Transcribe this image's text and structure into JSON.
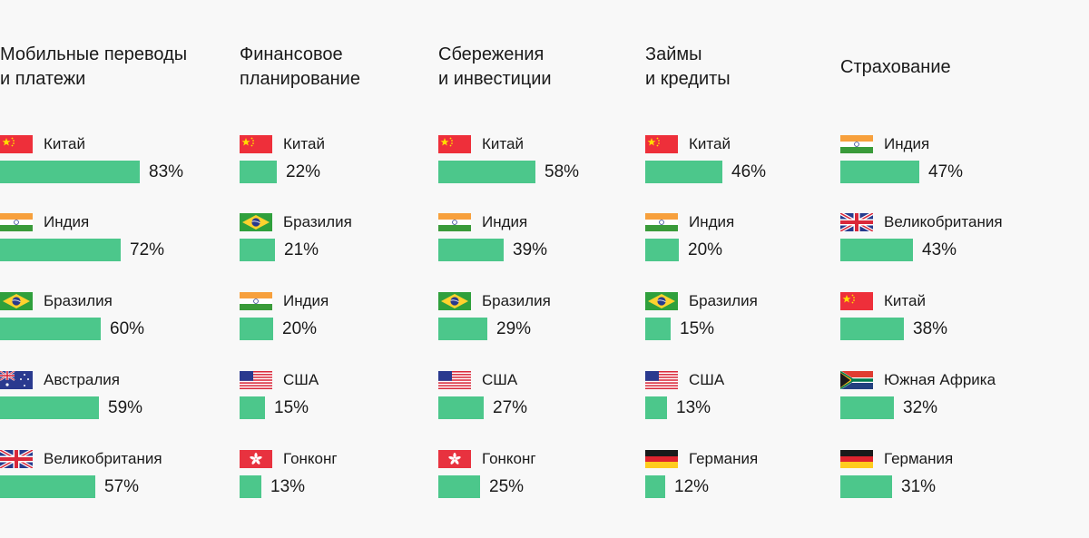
{
  "colors": {
    "bar": "#4cc78b",
    "background": "#f8f8f8",
    "text": "#1a1a1a"
  },
  "chart_data": [
    {
      "type": "bar",
      "title": "Мобильные переводы\n и платежи",
      "categories": [
        "Китай",
        "Индия",
        "Бразилия",
        "Австралия",
        "Великобритания"
      ],
      "values": [
        83,
        72,
        60,
        59,
        57
      ],
      "labels": [
        "83%",
        "72%",
        "60%",
        "59%",
        "57%"
      ],
      "flags": [
        "china-flag-icon",
        "india-flag-icon",
        "brazil-flag-icon",
        "australia-flag-icon",
        "uk-flag-icon"
      ]
    },
    {
      "type": "bar",
      "title": "Финансовое\nпланирование",
      "categories": [
        "Китай",
        "Бразилия",
        "Индия",
        "США",
        "Гонконг"
      ],
      "values": [
        22,
        21,
        20,
        15,
        13
      ],
      "labels": [
        "22%",
        "21%",
        "20%",
        "15%",
        "13%"
      ],
      "flags": [
        "china-flag-icon",
        "brazil-flag-icon",
        "india-flag-icon",
        "usa-flag-icon",
        "hongkong-flag-icon"
      ]
    },
    {
      "type": "bar",
      "title": "Сбережения\nи инвестиции",
      "categories": [
        "Китай",
        "Индия",
        "Бразилия",
        "США",
        "Гонконг"
      ],
      "values": [
        58,
        39,
        29,
        27,
        25
      ],
      "labels": [
        "58%",
        "39%",
        "29%",
        "27%",
        "25%"
      ],
      "flags": [
        "china-flag-icon",
        "india-flag-icon",
        "brazil-flag-icon",
        "usa-flag-icon",
        "hongkong-flag-icon"
      ]
    },
    {
      "type": "bar",
      "title": "Займы\nи кредиты",
      "categories": [
        "Китай",
        "Индия",
        "Бразилия",
        "США",
        "Германия"
      ],
      "values": [
        46,
        20,
        15,
        13,
        12
      ],
      "labels": [
        "46%",
        "20%",
        "15%",
        "13%",
        "12%"
      ],
      "flags": [
        "china-flag-icon",
        "india-flag-icon",
        "brazil-flag-icon",
        "usa-flag-icon",
        "germany-flag-icon"
      ]
    },
    {
      "type": "bar",
      "title": "Страхование",
      "categories": [
        "Индия",
        "Великобритания",
        "Китай",
        "Южная Африка",
        "Германия"
      ],
      "values": [
        47,
        43,
        38,
        32,
        31
      ],
      "labels": [
        "47%",
        "43%",
        "38%",
        "32%",
        "31%"
      ],
      "flags": [
        "india-flag-icon",
        "uk-flag-icon",
        "china-flag-icon",
        "south-africa-flag-icon",
        "germany-flag-icon"
      ]
    }
  ]
}
